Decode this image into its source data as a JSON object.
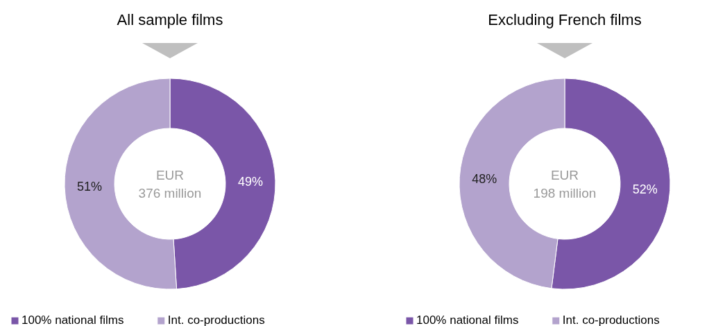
{
  "chart_data": [
    {
      "type": "donut",
      "title": "All sample films",
      "categories": [
        "100% national films",
        "Int. co-productions"
      ],
      "values": [
        49,
        51
      ],
      "colors": [
        "#7a56a8",
        "#b3a3cd"
      ],
      "value_labels": [
        "49%",
        "51%"
      ],
      "annotations": [
        "EUR",
        "376 million"
      ],
      "legend": "bottom left"
    },
    {
      "type": "donut",
      "title": "Excluding French films",
      "categories": [
        "100% national films",
        "Int. co-productions"
      ],
      "values": [
        52,
        48
      ],
      "colors": [
        "#7a56a8",
        "#b3a3cd"
      ],
      "value_labels": [
        "52%",
        "48%"
      ],
      "annotations": [
        "EUR",
        "198 million"
      ],
      "legend": "bottom left"
    }
  ]
}
